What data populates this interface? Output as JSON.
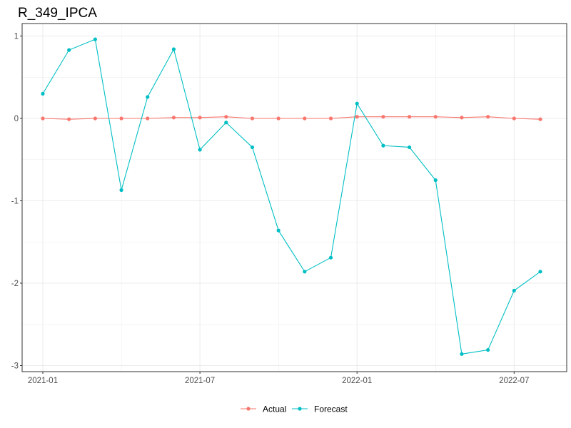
{
  "chart_data": {
    "type": "line",
    "title": "R_349_IPCA",
    "xlabel": "",
    "ylabel": "",
    "grid": true,
    "legend_position": "bottom",
    "x": [
      "2021-01",
      "2021-02",
      "2021-03",
      "2021-04",
      "2021-05",
      "2021-06",
      "2021-07",
      "2021-08",
      "2021-09",
      "2021-10",
      "2021-11",
      "2021-12",
      "2022-01",
      "2022-02",
      "2022-03",
      "2022-04",
      "2022-05",
      "2022-06",
      "2022-07",
      "2022-08"
    ],
    "x_ticks": [
      "2021-01",
      "2021-07",
      "2022-01",
      "2022-07"
    ],
    "y_ticks": [
      1,
      0,
      -1,
      -2,
      -3
    ],
    "y_tick_labels": [
      "1",
      "0",
      "-1",
      "-2",
      "-3"
    ],
    "ylim": [
      -3.05,
      1.15
    ],
    "series": [
      {
        "name": "Actual",
        "color": "#F8766D",
        "values": [
          0.0,
          -0.01,
          0.0,
          0.0,
          0.0,
          0.01,
          0.01,
          0.02,
          0.0,
          0.0,
          0.0,
          0.0,
          0.02,
          0.02,
          0.02,
          0.02,
          0.01,
          0.02,
          0.0,
          -0.01
        ]
      },
      {
        "name": "Forecast",
        "color": "#00BFC4",
        "values": [
          0.3,
          0.83,
          0.96,
          -0.87,
          0.26,
          0.84,
          -0.38,
          -0.05,
          -0.35,
          -1.36,
          -1.86,
          -1.69,
          0.18,
          -0.33,
          -0.35,
          -0.75,
          -2.86,
          -2.81,
          -2.09,
          -1.86
        ]
      }
    ]
  }
}
